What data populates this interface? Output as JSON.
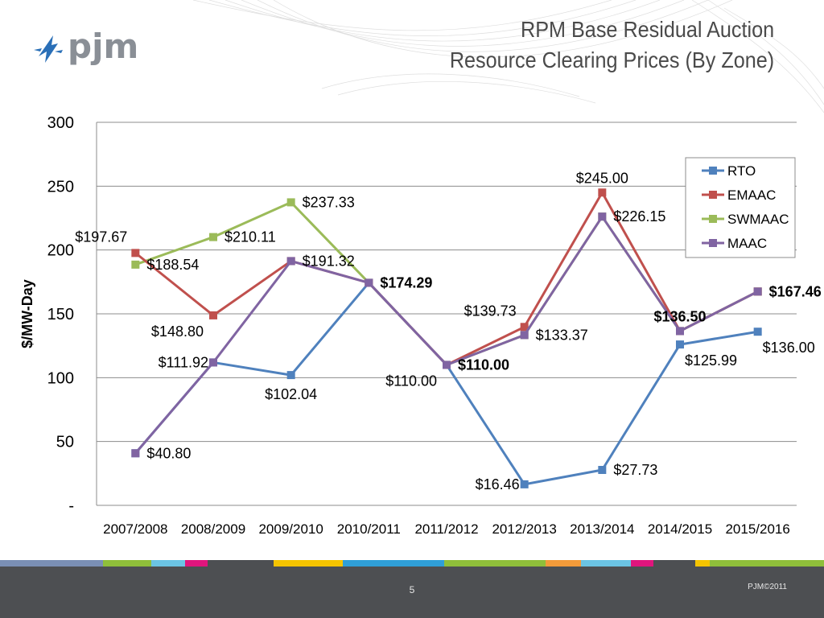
{
  "brand": {
    "logo_text": "pjm"
  },
  "slide": {
    "title_line1": "RPM Base Residual Auction",
    "title_line2": "Resource Clearing Prices (By Zone)",
    "page_number": "5",
    "copyright": "PJM©2011"
  },
  "colors": {
    "RTO": "#4f81bd",
    "EMAAC": "#c0504d",
    "SWMAAC": "#9bbb59",
    "MAAC": "#8064a2",
    "footer_stripes": [
      "#7a8fb5",
      "#8fbf3a",
      "#6bc4e4",
      "#e0157d",
      "#4d4f52",
      "#f5c400",
      "#2f9fd8",
      "#8fbf3a",
      "#f39b3a",
      "#6bc4e4",
      "#e0157d",
      "#4d4f52",
      "#f5c400",
      "#8fbf3a"
    ]
  },
  "chart_data": {
    "type": "line",
    "ylabel": "$/MW-Day",
    "ylim": [
      0,
      300
    ],
    "y_ticks": [
      0,
      50,
      100,
      150,
      200,
      250,
      300
    ],
    "y_tick_labels": [
      "-",
      "50",
      "100",
      "150",
      "200",
      "250",
      "300"
    ],
    "grid": true,
    "legend_position": "top-right",
    "categories": [
      "2007/2008",
      "2008/2009",
      "2009/2010",
      "2010/2011",
      "2011/2012",
      "2012/2013",
      "2013/2014",
      "2014/2015",
      "2015/2016"
    ],
    "series": [
      {
        "name": "RTO",
        "values": [
          40.8,
          111.92,
          102.04,
          174.29,
          110.0,
          16.46,
          27.73,
          125.99,
          136.0
        ]
      },
      {
        "name": "EMAAC",
        "values": [
          197.67,
          148.8,
          191.32,
          174.29,
          110.0,
          139.73,
          245.0,
          136.5,
          167.46
        ]
      },
      {
        "name": "SWMAAC",
        "values": [
          188.54,
          210.11,
          237.33,
          174.29,
          110.0,
          133.37,
          226.15,
          136.5,
          167.46
        ]
      },
      {
        "name": "MAAC",
        "values": [
          40.8,
          111.92,
          191.32,
          174.29,
          110.0,
          133.37,
          226.15,
          136.5,
          167.46
        ]
      }
    ],
    "data_labels": [
      {
        "text": "$197.67",
        "cat": 0,
        "value": 197.67,
        "pos": "above-left"
      },
      {
        "text": "$188.54",
        "cat": 0,
        "value": 188.54,
        "pos": "right"
      },
      {
        "text": "$40.80",
        "cat": 0,
        "value": 40.8,
        "pos": "right"
      },
      {
        "text": "$210.11",
        "cat": 1,
        "value": 210.11,
        "pos": "right"
      },
      {
        "text": "$148.80",
        "cat": 1,
        "value": 148.8,
        "pos": "below-left"
      },
      {
        "text": "$111.92",
        "cat": 1,
        "value": 111.92,
        "pos": "left"
      },
      {
        "text": "$237.33",
        "cat": 2,
        "value": 237.33,
        "pos": "right"
      },
      {
        "text": "$191.32",
        "cat": 2,
        "value": 191.32,
        "pos": "right"
      },
      {
        "text": "$102.04",
        "cat": 2,
        "value": 102.04,
        "pos": "below"
      },
      {
        "text": "$174.29",
        "cat": 3,
        "value": 174.29,
        "pos": "right-bold"
      },
      {
        "text": "$110.00",
        "cat": 4,
        "value": 110.0,
        "pos": "right-bold"
      },
      {
        "text": "$110.00",
        "cat": 4,
        "value": 110.0,
        "pos": "below-left"
      },
      {
        "text": "$139.73",
        "cat": 5,
        "value": 139.73,
        "pos": "above-left"
      },
      {
        "text": "$133.37",
        "cat": 5,
        "value": 133.37,
        "pos": "right"
      },
      {
        "text": "$16.46",
        "cat": 5,
        "value": 16.46,
        "pos": "left"
      },
      {
        "text": "$245.00",
        "cat": 6,
        "value": 245.0,
        "pos": "above"
      },
      {
        "text": "$226.15",
        "cat": 6,
        "value": 226.15,
        "pos": "right"
      },
      {
        "text": "$27.73",
        "cat": 6,
        "value": 27.73,
        "pos": "right"
      },
      {
        "text": "$136.50",
        "cat": 7,
        "value": 136.5,
        "pos": "above-bold"
      },
      {
        "text": "$125.99",
        "cat": 7,
        "value": 125.99,
        "pos": "below-right"
      },
      {
        "text": "$167.46",
        "cat": 8,
        "value": 167.46,
        "pos": "right-bold"
      },
      {
        "text": "$136.00",
        "cat": 8,
        "value": 136.0,
        "pos": "below-right"
      }
    ]
  }
}
